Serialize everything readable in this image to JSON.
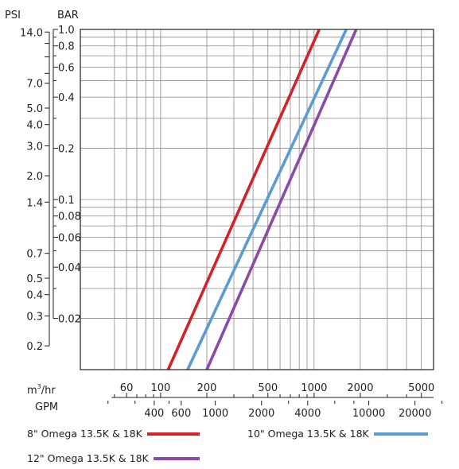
{
  "chart_data": {
    "type": "line",
    "y_axes": {
      "psi": {
        "title": "PSI",
        "ticks": [
          {
            "label": "14.0",
            "value": 14.0
          },
          {
            "label": "7.0",
            "value": 7.0
          },
          {
            "label": "5.0",
            "value": 5.0
          },
          {
            "label": "4.0",
            "value": 4.0
          },
          {
            "label": "3.0",
            "value": 3.0
          },
          {
            "label": "2.0",
            "value": 2.0
          },
          {
            "label": "1.4",
            "value": 1.4
          },
          {
            "label": "0.7",
            "value": 0.7
          },
          {
            "label": "0.5",
            "value": 0.5
          },
          {
            "label": "0.4",
            "value": 0.4
          },
          {
            "label": "0.3",
            "value": 0.3
          },
          {
            "label": "0.2",
            "value": 0.2
          }
        ]
      },
      "bar": {
        "title": "BAR",
        "range": [
          0.01,
          1.0
        ],
        "scale": "log",
        "ticks": [
          {
            "label": "1.0",
            "value": 1.0
          },
          {
            "label": "0.8",
            "value": 0.8
          },
          {
            "label": "0.6",
            "value": 0.6
          },
          {
            "label": "0.4",
            "value": 0.4
          },
          {
            "label": "0.2",
            "value": 0.2
          },
          {
            "label": "0.1",
            "value": 0.1
          },
          {
            "label": "0.08",
            "value": 0.08
          },
          {
            "label": "0.06",
            "value": 0.06
          },
          {
            "label": "0.04",
            "value": 0.04
          },
          {
            "label": "0.02",
            "value": 0.02
          }
        ],
        "minor_ticks": [
          0.9,
          0.7,
          0.5,
          0.3,
          0.09,
          0.07,
          0.05,
          0.03
        ]
      }
    },
    "x_axes": {
      "m3hr": {
        "title_main": "m",
        "title_sup": "3",
        "title_tail": "/hr",
        "range": [
          30,
          6000
        ],
        "scale": "log",
        "ticks": [
          {
            "label": "60",
            "value": 60
          },
          {
            "label": "100",
            "value": 100
          },
          {
            "label": "200",
            "value": 200
          },
          {
            "label": "500",
            "value": 500
          },
          {
            "label": "1000",
            "value": 1000
          },
          {
            "label": "2000",
            "value": 2000
          },
          {
            "label": "5000",
            "value": 5000
          }
        ],
        "minor_ticks": [
          50,
          70,
          80,
          90,
          300,
          400,
          600,
          700,
          800,
          900,
          3000,
          4000
        ]
      },
      "gpm": {
        "title": "GPM",
        "ticks": [
          {
            "label": "400",
            "value": 400
          },
          {
            "label": "600",
            "value": 600
          },
          {
            "label": "1000",
            "value": 1000
          },
          {
            "label": "2000",
            "value": 2000
          },
          {
            "label": "4000",
            "value": 4000
          },
          {
            "label": "10000",
            "value": 10000
          },
          {
            "label": "20000",
            "value": 20000
          }
        ],
        "minor_ticks": [
          200,
          300,
          500,
          3000,
          6000,
          8000,
          30000
        ]
      }
    },
    "grid": true,
    "series": [
      {
        "name": "8\" Omega 13.5K & 18K",
        "color": "#d2232a",
        "points": [
          [
            112,
            0.01
          ],
          [
            1080,
            1.0
          ]
        ]
      },
      {
        "name": "10\" Omega 13.5K & 18K",
        "color": "#5a9bd4",
        "points": [
          [
            150,
            0.01
          ],
          [
            1620,
            1.0
          ]
        ]
      },
      {
        "name": "12\" Omega 13.5K & 18K",
        "color": "#8b4aa6",
        "points": [
          [
            200,
            0.01
          ],
          [
            1880,
            1.0
          ]
        ]
      }
    ]
  }
}
